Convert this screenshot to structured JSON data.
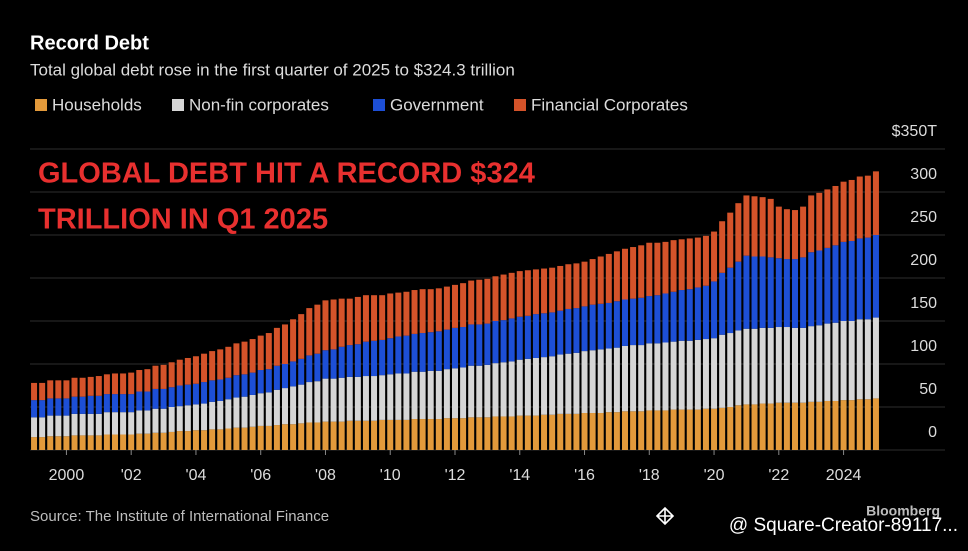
{
  "chart_data": {
    "type": "stacked-bar",
    "title": "Record Debt",
    "subtitle": "Total global debt rose in the first quarter of 2025 to $324.3 trillion",
    "annotation": [
      "GLOBAL DEBT HIT A RECORD $324",
      "TRILLION IN Q1 2025"
    ],
    "source": "Source: The Institute of International Finance",
    "brand": "Bloomberg",
    "watermark": "@ Square-Creator-89117...",
    "categories": [
      null,
      null,
      null,
      null,
      "2000",
      null,
      null,
      null,
      null,
      null,
      null,
      null,
      "'02",
      null,
      null,
      null,
      null,
      null,
      null,
      null,
      "'04",
      null,
      null,
      null,
      null,
      null,
      null,
      null,
      "'06",
      null,
      null,
      null,
      null,
      null,
      null,
      null,
      "'08",
      null,
      null,
      null,
      null,
      null,
      null,
      null,
      "'10",
      null,
      null,
      null,
      null,
      null,
      null,
      null,
      "'12",
      null,
      null,
      null,
      null,
      null,
      null,
      null,
      "'14",
      null,
      null,
      null,
      null,
      null,
      null,
      null,
      "'16",
      null,
      null,
      null,
      null,
      null,
      null,
      null,
      "'18",
      null,
      null,
      null,
      null,
      null,
      null,
      null,
      "'20",
      null,
      null,
      null,
      null,
      null,
      null,
      null,
      "'22",
      null,
      null,
      null,
      null,
      null,
      null,
      null,
      "2024",
      null,
      null,
      null,
      null
    ],
    "series": [
      {
        "name": "Households",
        "color": "#e39a3b",
        "values": [
          15,
          15,
          16,
          16,
          16,
          17,
          17,
          17,
          17,
          18,
          18,
          18,
          18,
          19,
          19,
          20,
          20,
          21,
          22,
          22,
          23,
          23,
          24,
          24,
          25,
          26,
          26,
          27,
          28,
          28,
          29,
          30,
          30,
          31,
          32,
          32,
          33,
          33,
          33,
          34,
          34,
          34,
          34,
          35,
          35,
          35,
          35,
          36,
          36,
          36,
          36,
          37,
          37,
          37,
          38,
          38,
          38,
          39,
          39,
          39,
          40,
          40,
          40,
          41,
          41,
          42,
          42,
          42,
          43,
          43,
          43,
          44,
          44,
          45,
          45,
          45,
          46,
          46,
          46,
          47,
          47,
          47,
          47,
          48,
          48,
          49,
          50,
          52,
          53,
          53,
          54,
          54,
          55,
          55,
          55,
          55,
          56,
          56,
          57,
          57,
          58,
          58,
          59,
          59,
          60
        ]
      },
      {
        "name": "Non-fin corporates",
        "color": "#d6d6d6",
        "values": [
          23,
          23,
          24,
          24,
          24,
          25,
          25,
          25,
          25,
          26,
          26,
          26,
          26,
          27,
          27,
          28,
          28,
          29,
          29,
          30,
          30,
          31,
          32,
          33,
          34,
          35,
          36,
          37,
          38,
          39,
          41,
          42,
          44,
          45,
          47,
          48,
          50,
          50,
          51,
          51,
          51,
          52,
          52,
          52,
          53,
          54,
          54,
          55,
          55,
          56,
          56,
          57,
          58,
          59,
          60,
          60,
          61,
          62,
          63,
          64,
          65,
          66,
          67,
          67,
          68,
          69,
          70,
          71,
          72,
          73,
          74,
          74,
          75,
          76,
          77,
          77,
          78,
          78,
          79,
          79,
          80,
          80,
          81,
          81,
          82,
          85,
          86,
          87,
          88,
          88,
          88,
          88,
          88,
          88,
          87,
          87,
          88,
          89,
          90,
          91,
          92,
          92,
          93,
          93,
          94
        ]
      },
      {
        "name": "Government",
        "color": "#1d4fd6",
        "values": [
          20,
          20,
          20,
          20,
          20,
          20,
          20,
          21,
          21,
          21,
          21,
          21,
          21,
          22,
          22,
          23,
          23,
          23,
          24,
          24,
          24,
          25,
          25,
          25,
          25,
          26,
          26,
          26,
          27,
          27,
          28,
          28,
          29,
          30,
          31,
          32,
          33,
          34,
          36,
          37,
          38,
          40,
          41,
          41,
          42,
          43,
          44,
          44,
          45,
          45,
          46,
          46,
          47,
          47,
          48,
          48,
          48,
          49,
          49,
          50,
          50,
          50,
          51,
          51,
          51,
          51,
          52,
          52,
          52,
          53,
          53,
          53,
          54,
          54,
          54,
          55,
          55,
          56,
          57,
          58,
          59,
          60,
          61,
          62,
          66,
          72,
          76,
          80,
          85,
          84,
          83,
          82,
          80,
          79,
          80,
          82,
          86,
          87,
          88,
          90,
          92,
          93,
          94,
          95,
          96
        ]
      },
      {
        "name": "Financial Corporates",
        "color": "#d4532a",
        "values": [
          20,
          20,
          21,
          21,
          21,
          22,
          22,
          22,
          23,
          23,
          24,
          24,
          25,
          25,
          26,
          27,
          28,
          29,
          30,
          31,
          32,
          33,
          34,
          35,
          36,
          37,
          38,
          39,
          40,
          42,
          44,
          46,
          49,
          52,
          55,
          57,
          58,
          58,
          56,
          54,
          55,
          54,
          53,
          52,
          52,
          51,
          51,
          51,
          51,
          50,
          50,
          50,
          50,
          51,
          51,
          52,
          52,
          52,
          53,
          53,
          53,
          53,
          52,
          52,
          52,
          52,
          52,
          52,
          52,
          53,
          55,
          57,
          58,
          59,
          60,
          61,
          62,
          61,
          60,
          60,
          59,
          59,
          58,
          58,
          58,
          60,
          64,
          68,
          70,
          70,
          69,
          68,
          60,
          58,
          57,
          59,
          66,
          67,
          68,
          69,
          70,
          71,
          72,
          72,
          74
        ]
      }
    ],
    "ylim": [
      0,
      350
    ],
    "yticks": [
      0,
      50,
      100,
      150,
      200,
      250,
      300,
      {
        "value": 350,
        "label": "$350T"
      }
    ],
    "grid": true
  }
}
